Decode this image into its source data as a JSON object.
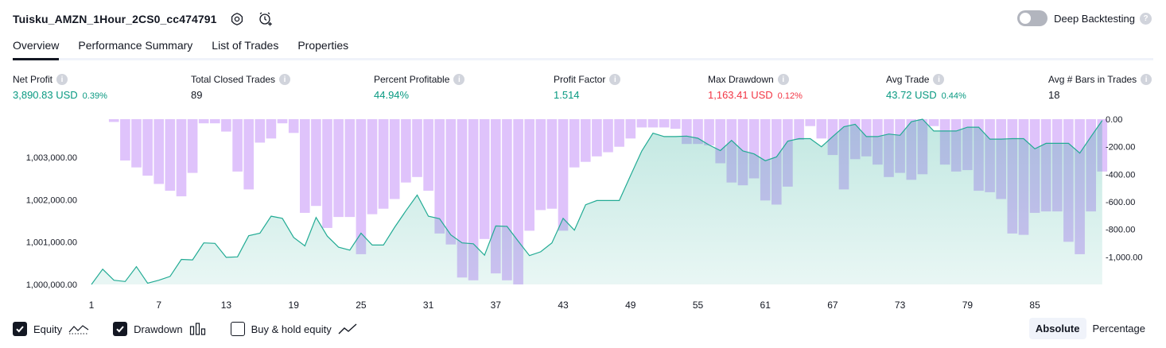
{
  "header": {
    "title": "Tuisku_AMZN_1Hour_2CS0_cc474791",
    "deep_backtesting_label": "Deep Backtesting",
    "deep_backtesting_enabled": false
  },
  "tabs": [
    {
      "label": "Overview",
      "active": true
    },
    {
      "label": "Performance Summary",
      "active": false
    },
    {
      "label": "List of Trades",
      "active": false
    },
    {
      "label": "Properties",
      "active": false
    }
  ],
  "metrics": {
    "net_profit": {
      "label": "Net Profit",
      "value": "3,890.83 USD",
      "pct": "0.39%"
    },
    "total_closed_trades": {
      "label": "Total Closed Trades",
      "value": "89"
    },
    "percent_profitable": {
      "label": "Percent Profitable",
      "value": "44.94%"
    },
    "profit_factor": {
      "label": "Profit Factor",
      "value": "1.514"
    },
    "max_drawdown": {
      "label": "Max Drawdown",
      "value": "1,163.41 USD",
      "pct": "0.12%"
    },
    "avg_trade": {
      "label": "Avg Trade",
      "value": "43.72 USD",
      "pct": "0.44%"
    },
    "avg_bars": {
      "label": "Avg # Bars in Trades",
      "value": "18"
    }
  },
  "legend": {
    "equity": {
      "label": "Equity",
      "checked": true
    },
    "drawdown": {
      "label": "Drawdown",
      "checked": true
    },
    "buy_hold": {
      "label": "Buy & hold equity",
      "checked": false
    }
  },
  "mode": {
    "absolute": "Absolute",
    "percentage": "Percentage",
    "selected": "absolute"
  },
  "colors": {
    "equity_line": "#22ab94",
    "equity_fill": "#d5f0e9",
    "drawdown_bar": "#dcbdfb",
    "positive": "#089981",
    "negative": "#f23645"
  },
  "chart_data": {
    "type": "area",
    "x_ticks": [
      1,
      7,
      13,
      19,
      25,
      31,
      37,
      43,
      49,
      55,
      61,
      67,
      73,
      79,
      85
    ],
    "left_axis": {
      "ticks": [
        1000000,
        1001000,
        1002000,
        1003000
      ],
      "tick_labels": [
        "1,000,000.00",
        "1,001,000.00",
        "1,002,000.00",
        "1,003,000.00"
      ],
      "range": [
        1000000,
        1003900
      ]
    },
    "right_axis": {
      "ticks": [
        0,
        -200,
        -400,
        -600,
        -800,
        -1000
      ],
      "tick_labels": [
        "0.00",
        "-200.00",
        "-400.00",
        "-600.00",
        "-800.00",
        "-1,000.00"
      ],
      "range": [
        -1200,
        0
      ]
    },
    "series": [
      {
        "name": "Equity",
        "values": [
          1000000,
          1000360,
          1000100,
          1000070,
          1000420,
          1000030,
          1000100,
          1000190,
          1000590,
          1000580,
          1000980,
          1000970,
          1000640,
          1000650,
          1001150,
          1001210,
          1001610,
          1001560,
          1001110,
          1000910,
          1001580,
          1001140,
          1000880,
          1000810,
          1001210,
          1000930,
          1000930,
          1001350,
          1001740,
          1002110,
          1001610,
          1001550,
          1001170,
          1000980,
          1000960,
          1000690,
          1001380,
          1001370,
          1001020,
          1000680,
          1000770,
          1000980,
          1001560,
          1001280,
          1001880,
          1001980,
          1001980,
          1001980,
          1002570,
          1003150,
          1003570,
          1003490,
          1003490,
          1003500,
          1003450,
          1003290,
          1003160,
          1003400,
          1003150,
          1003080,
          1002920,
          1003010,
          1003380,
          1003440,
          1003440,
          1003250,
          1003490,
          1003720,
          1003780,
          1003490,
          1003490,
          1003550,
          1003520,
          1003840,
          1003900,
          1003620,
          1003620,
          1003620,
          1003710,
          1003710,
          1003430,
          1003430,
          1003440,
          1003440,
          1003200,
          1003330,
          1003330,
          1003330,
          1003100,
          1003490,
          1003870
        ]
      },
      {
        "name": "Drawdown",
        "values": [
          0,
          0,
          -20,
          -300,
          -350,
          -410,
          -470,
          -520,
          -560,
          -390,
          -30,
          -30,
          -90,
          -380,
          -510,
          -170,
          -140,
          -30,
          -100,
          -680,
          -630,
          -790,
          -710,
          -710,
          -980,
          -690,
          -650,
          -580,
          -460,
          -420,
          -520,
          -830,
          -910,
          -1150,
          -1170,
          -870,
          -1120,
          -1170,
          -1200,
          -810,
          -660,
          -650,
          -810,
          -350,
          -310,
          -270,
          -240,
          -200,
          -140,
          -60,
          -60,
          -60,
          -70,
          -180,
          -180,
          -190,
          -320,
          -460,
          -480,
          -430,
          -590,
          -620,
          -490,
          -150,
          -50,
          -140,
          -260,
          -510,
          -290,
          -270,
          -330,
          -420,
          -390,
          -440,
          -400,
          -50,
          -330,
          -380,
          -370,
          -520,
          -530,
          -580,
          -830,
          -840,
          -680,
          -670,
          -670,
          -890,
          -980,
          -670,
          -380
        ]
      }
    ]
  }
}
